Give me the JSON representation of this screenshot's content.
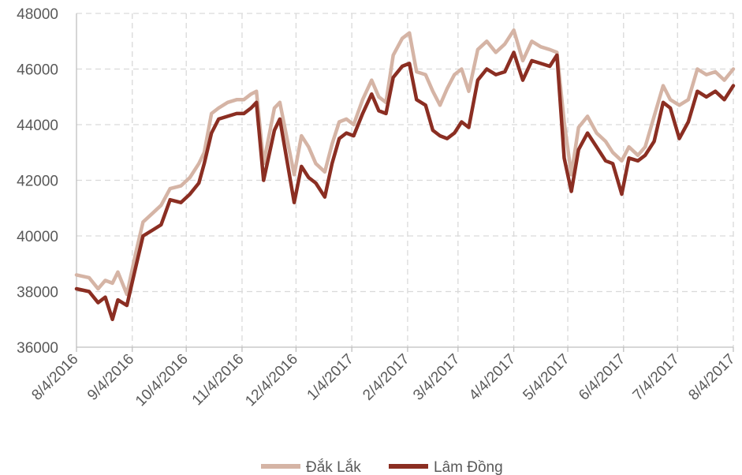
{
  "chart_data": {
    "type": "line",
    "title": "",
    "xlabel": "",
    "ylabel": "",
    "ylim": [
      36000,
      48000
    ],
    "yticks": [
      36000,
      38000,
      40000,
      42000,
      44000,
      46000,
      48000
    ],
    "ytick_labels": [
      "36000",
      "38000",
      "40000",
      "42000",
      "44000",
      "46000",
      "48000"
    ],
    "xlim": [
      "2016-08-04",
      "2017-08-04"
    ],
    "xtick_labels": [
      "8/4/2016",
      "9/4/2016",
      "10/4/2016",
      "11/4/2016",
      "12/4/2016",
      "1/4/2017",
      "2/4/2017",
      "3/4/2017",
      "4/4/2017",
      "5/4/2017",
      "6/4/2017",
      "7/4/2017",
      "8/4/2017"
    ],
    "grid": true,
    "legend_position": "bottom",
    "x": [
      "2016-08-04",
      "2016-08-11",
      "2016-08-16",
      "2016-08-20",
      "2016-08-24",
      "2016-08-27",
      "2016-09-01",
      "2016-09-06",
      "2016-09-10",
      "2016-09-15",
      "2016-09-20",
      "2016-09-25",
      "2016-10-01",
      "2016-10-06",
      "2016-10-11",
      "2016-10-14",
      "2016-10-18",
      "2016-10-22",
      "2016-10-27",
      "2016-11-01",
      "2016-11-05",
      "2016-11-09",
      "2016-11-12",
      "2016-11-16",
      "2016-11-22",
      "2016-11-25",
      "2016-11-29",
      "2016-12-03",
      "2016-12-07",
      "2016-12-11",
      "2016-12-15",
      "2016-12-20",
      "2016-12-24",
      "2016-12-28",
      "2017-01-01",
      "2017-01-05",
      "2017-01-10",
      "2017-01-15",
      "2017-01-19",
      "2017-01-23",
      "2017-01-27",
      "2017-02-01",
      "2017-02-05",
      "2017-02-09",
      "2017-02-14",
      "2017-02-18",
      "2017-02-22",
      "2017-02-26",
      "2017-03-02",
      "2017-03-06",
      "2017-03-10",
      "2017-03-15",
      "2017-03-20",
      "2017-03-25",
      "2017-03-30",
      "2017-04-04",
      "2017-04-09",
      "2017-04-14",
      "2017-04-19",
      "2017-04-24",
      "2017-04-28",
      "2017-05-02",
      "2017-05-06",
      "2017-05-10",
      "2017-05-15",
      "2017-05-20",
      "2017-05-25",
      "2017-05-29",
      "2017-06-03",
      "2017-06-07",
      "2017-06-12",
      "2017-06-16",
      "2017-06-21",
      "2017-06-26",
      "2017-06-30",
      "2017-07-05",
      "2017-07-10",
      "2017-07-15",
      "2017-07-20",
      "2017-07-25",
      "2017-07-30",
      "2017-08-04"
    ],
    "series": [
      {
        "name": "Đắk Lắk",
        "color": "#d5b4a5",
        "values": [
          38600,
          38500,
          38100,
          38400,
          38300,
          38700,
          37900,
          39400,
          40500,
          40800,
          41100,
          41700,
          41800,
          42100,
          42600,
          43000,
          44400,
          44600,
          44800,
          44900,
          44900,
          45100,
          45200,
          42600,
          44600,
          44800,
          43500,
          42200,
          43600,
          43200,
          42600,
          42300,
          43300,
          44100,
          44200,
          44000,
          44900,
          45600,
          45000,
          44800,
          46500,
          47100,
          47300,
          45900,
          45800,
          45200,
          44700,
          45300,
          45800,
          46000,
          45200,
          46700,
          47000,
          46600,
          46900,
          47400,
          46300,
          47000,
          46800,
          46700,
          46600,
          44100,
          42200,
          43900,
          44300,
          43700,
          43400,
          43000,
          42700,
          43200,
          42900,
          43200,
          44300,
          45400,
          44900,
          44700,
          44900,
          46000,
          45800,
          45900,
          45600,
          46000
        ]
      },
      {
        "name": "Lâm Đồng",
        "color": "#8b2e22",
        "values": [
          38100,
          38000,
          37600,
          37800,
          37000,
          37700,
          37500,
          38900,
          40000,
          40200,
          40400,
          41300,
          41200,
          41500,
          41900,
          42600,
          43700,
          44200,
          44300,
          44400,
          44400,
          44600,
          44800,
          42000,
          43800,
          44200,
          42700,
          41200,
          42500,
          42100,
          41900,
          41400,
          42600,
          43500,
          43700,
          43600,
          44400,
          45100,
          44500,
          44400,
          45700,
          46100,
          46200,
          44900,
          44700,
          43800,
          43600,
          43500,
          43700,
          44100,
          43900,
          45600,
          46000,
          45800,
          45900,
          46600,
          45600,
          46300,
          46200,
          46100,
          46500,
          42800,
          41600,
          43100,
          43700,
          43200,
          42700,
          42600,
          41500,
          42800,
          42700,
          42900,
          43400,
          44800,
          44600,
          43500,
          44100,
          45200,
          45000,
          45200,
          44900,
          45400
        ]
      }
    ]
  }
}
